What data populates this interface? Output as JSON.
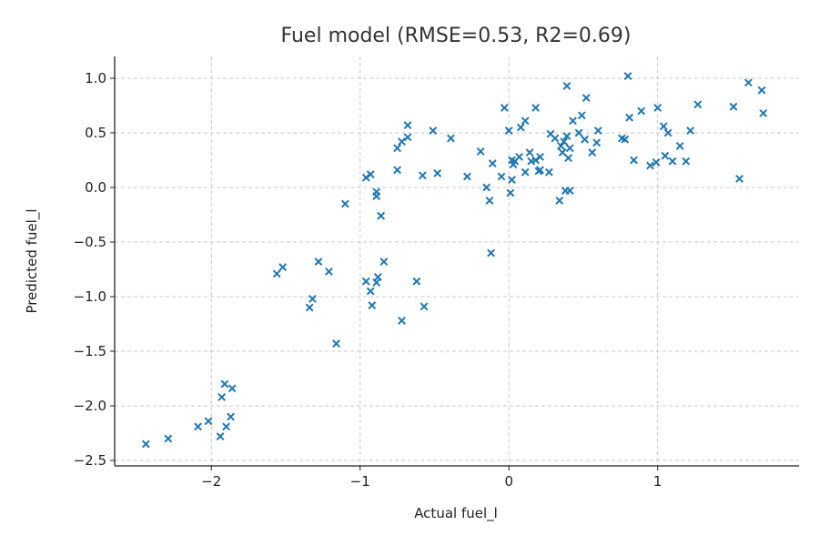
{
  "chart_data": {
    "type": "scatter",
    "title": "Fuel model (RMSE=0.53, R2=0.69)",
    "xlabel": "Actual fuel_l",
    "ylabel": "Predicted fuel_l",
    "xlim": [
      -2.65,
      1.95
    ],
    "ylim": [
      -2.55,
      1.2
    ],
    "xticks": [
      -2,
      -1,
      0,
      1
    ],
    "xtick_labels": [
      "−2",
      "−1",
      "0",
      "1"
    ],
    "yticks": [
      -2.5,
      -2.0,
      -1.5,
      -1.0,
      -0.5,
      0.0,
      0.5,
      1.0
    ],
    "ytick_labels": [
      "−2.5",
      "−2.0",
      "−1.5",
      "−1.0",
      "−0.5",
      "0.0",
      "0.5",
      "1.0"
    ],
    "grid": true,
    "marker": "x",
    "color": "#1f77b4",
    "points": [
      [
        -2.44,
        -2.35
      ],
      [
        -2.29,
        -2.3
      ],
      [
        -2.09,
        -2.19
      ],
      [
        -2.02,
        -2.14
      ],
      [
        -1.94,
        -2.28
      ],
      [
        -1.9,
        -2.19
      ],
      [
        -1.87,
        -2.1
      ],
      [
        -1.93,
        -1.92
      ],
      [
        -1.91,
        -1.8
      ],
      [
        -1.86,
        -1.84
      ],
      [
        -1.56,
        -0.79
      ],
      [
        -1.52,
        -0.73
      ],
      [
        -1.34,
        -1.1
      ],
      [
        -1.32,
        -1.02
      ],
      [
        -1.28,
        -0.68
      ],
      [
        -1.21,
        -0.77
      ],
      [
        -1.16,
        -1.43
      ],
      [
        -1.1,
        -0.15
      ],
      [
        -0.96,
        -0.86
      ],
      [
        -0.93,
        -0.95
      ],
      [
        -0.92,
        -1.08
      ],
      [
        -0.89,
        -0.87
      ],
      [
        -0.88,
        -0.82
      ],
      [
        -0.84,
        -0.68
      ],
      [
        -0.86,
        -0.26
      ],
      [
        -0.89,
        -0.08
      ],
      [
        -0.89,
        -0.04
      ],
      [
        -0.96,
        0.09
      ],
      [
        -0.93,
        0.12
      ],
      [
        -0.75,
        0.16
      ],
      [
        -0.72,
        -1.22
      ],
      [
        -0.62,
        -0.86
      ],
      [
        -0.57,
        -1.09
      ],
      [
        -0.75,
        0.36
      ],
      [
        -0.72,
        0.42
      ],
      [
        -0.68,
        0.46
      ],
      [
        -0.68,
        0.57
      ],
      [
        -0.51,
        0.52
      ],
      [
        -0.39,
        0.45
      ],
      [
        -0.58,
        0.11
      ],
      [
        -0.48,
        0.13
      ],
      [
        -0.28,
        0.1
      ],
      [
        -0.19,
        0.33
      ],
      [
        -0.12,
        -0.6
      ],
      [
        -0.13,
        -0.12
      ],
      [
        -0.15,
        0.0
      ],
      [
        -0.11,
        0.22
      ],
      [
        -0.05,
        0.1
      ],
      [
        0.0,
        0.52
      ],
      [
        0.01,
        -0.05
      ],
      [
        0.02,
        0.07
      ],
      [
        0.02,
        0.25
      ],
      [
        0.03,
        0.21
      ],
      [
        0.04,
        0.24
      ],
      [
        0.07,
        0.28
      ],
      [
        0.08,
        0.55
      ],
      [
        0.11,
        0.61
      ],
      [
        0.11,
        0.14
      ],
      [
        0.14,
        0.32
      ],
      [
        0.15,
        0.24
      ],
      [
        0.18,
        0.25
      ],
      [
        0.2,
        0.15
      ],
      [
        0.21,
        0.16
      ],
      [
        0.21,
        0.28
      ],
      [
        0.18,
        0.73
      ],
      [
        0.27,
        0.14
      ],
      [
        0.28,
        0.49
      ],
      [
        0.31,
        0.45
      ],
      [
        0.34,
        -0.12
      ],
      [
        0.35,
        0.38
      ],
      [
        0.36,
        0.32
      ],
      [
        0.37,
        0.42
      ],
      [
        0.38,
        -0.03
      ],
      [
        0.39,
        0.47
      ],
      [
        0.4,
        0.27
      ],
      [
        0.41,
        0.36
      ],
      [
        0.39,
        0.93
      ],
      [
        0.43,
        0.61
      ],
      [
        0.47,
        0.5
      ],
      [
        0.49,
        0.66
      ],
      [
        0.51,
        0.44
      ],
      [
        0.52,
        0.82
      ],
      [
        0.56,
        0.32
      ],
      [
        0.59,
        0.41
      ],
      [
        0.6,
        0.52
      ],
      [
        -0.03,
        0.73
      ],
      [
        0.41,
        -0.03
      ],
      [
        0.76,
        0.45
      ],
      [
        0.78,
        0.44
      ],
      [
        0.8,
        1.02
      ],
      [
        0.81,
        0.64
      ],
      [
        0.84,
        0.25
      ],
      [
        0.89,
        0.7
      ],
      [
        0.95,
        0.2
      ],
      [
        0.99,
        0.23
      ],
      [
        1.0,
        0.73
      ],
      [
        1.04,
        0.56
      ],
      [
        1.05,
        0.29
      ],
      [
        1.07,
        0.5
      ],
      [
        1.1,
        0.24
      ],
      [
        1.15,
        0.38
      ],
      [
        1.19,
        0.24
      ],
      [
        1.22,
        0.52
      ],
      [
        1.27,
        0.76
      ],
      [
        1.51,
        0.74
      ],
      [
        1.55,
        0.08
      ],
      [
        1.61,
        0.96
      ],
      [
        1.7,
        0.89
      ],
      [
        1.71,
        0.68
      ]
    ]
  }
}
